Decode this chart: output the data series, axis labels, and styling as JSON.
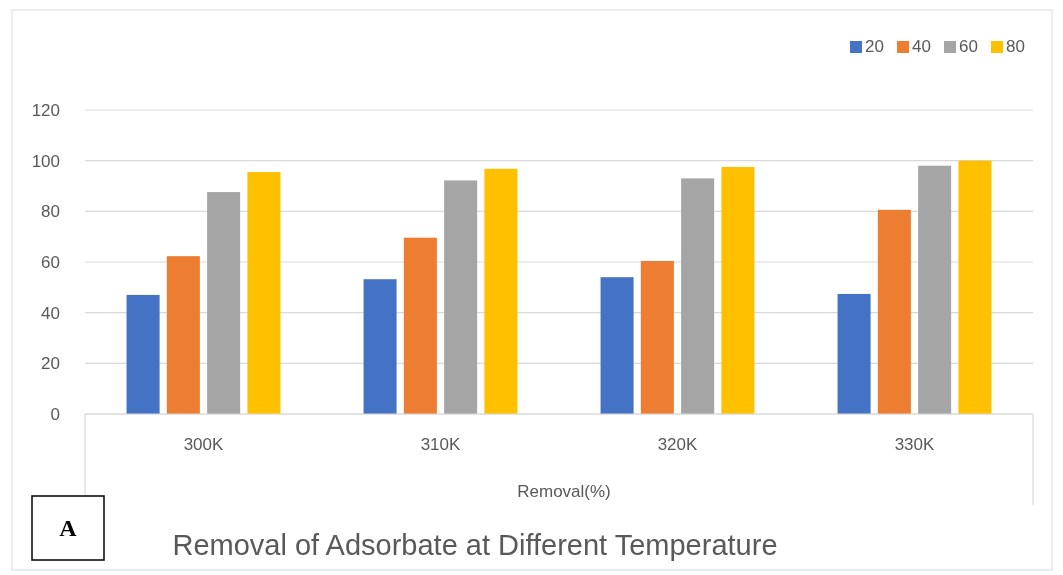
{
  "chart_data": {
    "type": "bar",
    "title": "Removal of Adsorbate at Different Temperature",
    "xlabel": "Removal(%)",
    "annotations": [
      "A"
    ],
    "categories": [
      "300K",
      "310K",
      "320K",
      "330K"
    ],
    "series": [
      {
        "name": "20",
        "color": "#4472c4",
        "values": [
          47,
          53.2,
          54,
          47.4
        ]
      },
      {
        "name": "40",
        "color": "#ed7d31",
        "values": [
          62.3,
          69.6,
          60.4,
          80.6
        ]
      },
      {
        "name": "60",
        "color": "#a5a5a5",
        "values": [
          87.6,
          92.2,
          93,
          98
        ]
      },
      {
        "name": "80",
        "color": "#ffc000",
        "values": [
          95.5,
          96.8,
          97.5,
          100
        ]
      }
    ],
    "ylim": [
      0,
      120
    ],
    "yticks": [
      0,
      20,
      40,
      60,
      80,
      100,
      120
    ],
    "grid": "y",
    "legend": "top right"
  }
}
